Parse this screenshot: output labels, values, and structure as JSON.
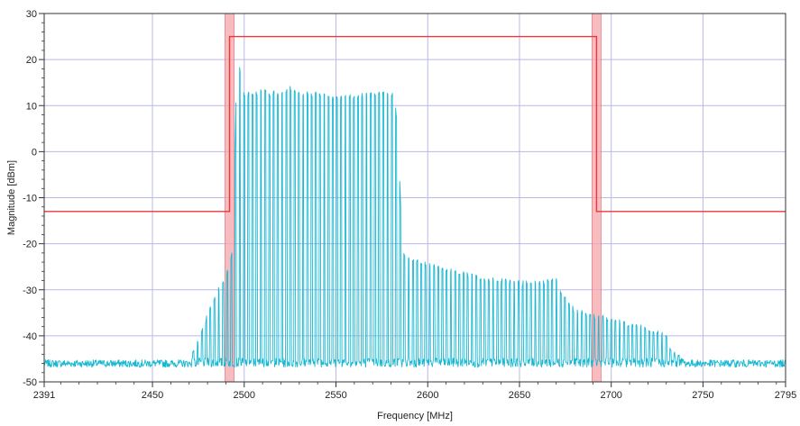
{
  "chart_data": {
    "type": "line",
    "title": "",
    "xlabel": "Frequency [MHz]",
    "ylabel": "Magnitude [dBm]",
    "xlim": [
      2391,
      2795
    ],
    "ylim": [
      -50,
      30
    ],
    "grid": true,
    "x_ticks": [
      2391,
      2450,
      2500,
      2550,
      2600,
      2650,
      2700,
      2750,
      2795
    ],
    "y_ticks": [
      30,
      20,
      10,
      0,
      -10,
      -20,
      -30,
      -40,
      -50
    ],
    "colors": {
      "spectrum": "#19b8d2",
      "mask": "#e8383d",
      "band_marker": "#f4a6aa",
      "grid": "#b9b9e6"
    },
    "series": [
      {
        "role": "spectrum",
        "noise_floor": -46,
        "points": [
          [
            2391,
            -46
          ],
          [
            2430,
            -46
          ],
          [
            2470,
            -45.5
          ],
          [
            2475,
            -40
          ],
          [
            2480,
            -35
          ],
          [
            2485,
            -30
          ],
          [
            2490,
            -27
          ],
          [
            2494,
            -20
          ],
          [
            2496,
            21.5
          ],
          [
            2500,
            13
          ],
          [
            2510,
            13.5
          ],
          [
            2520,
            13
          ],
          [
            2525,
            14.5
          ],
          [
            2530,
            13
          ],
          [
            2540,
            13
          ],
          [
            2550,
            12
          ],
          [
            2560,
            12.5
          ],
          [
            2570,
            13
          ],
          [
            2580,
            13.5
          ],
          [
            2582,
            12
          ],
          [
            2584,
            4
          ],
          [
            2586,
            -21
          ],
          [
            2590,
            -23
          ],
          [
            2600,
            -24
          ],
          [
            2610,
            -25
          ],
          [
            2620,
            -26
          ],
          [
            2630,
            -27
          ],
          [
            2640,
            -27.5
          ],
          [
            2650,
            -28
          ],
          [
            2660,
            -28
          ],
          [
            2670,
            -27
          ],
          [
            2672,
            -30
          ],
          [
            2680,
            -34
          ],
          [
            2690,
            -35
          ],
          [
            2700,
            -36
          ],
          [
            2710,
            -37
          ],
          [
            2720,
            -38
          ],
          [
            2730,
            -39
          ],
          [
            2733,
            -43
          ],
          [
            2740,
            -45
          ],
          [
            2760,
            -45.5
          ],
          [
            2795,
            -45.5
          ]
        ]
      },
      {
        "role": "mask",
        "points": [
          [
            2391,
            -13
          ],
          [
            2492,
            -13
          ],
          [
            2492,
            25
          ],
          [
            2692,
            25
          ],
          [
            2692,
            -13
          ],
          [
            2795,
            -13
          ]
        ]
      }
    ],
    "band_markers": [
      {
        "from": 2489.5,
        "to": 2494.5
      },
      {
        "from": 2689.5,
        "to": 2694.5
      }
    ]
  }
}
